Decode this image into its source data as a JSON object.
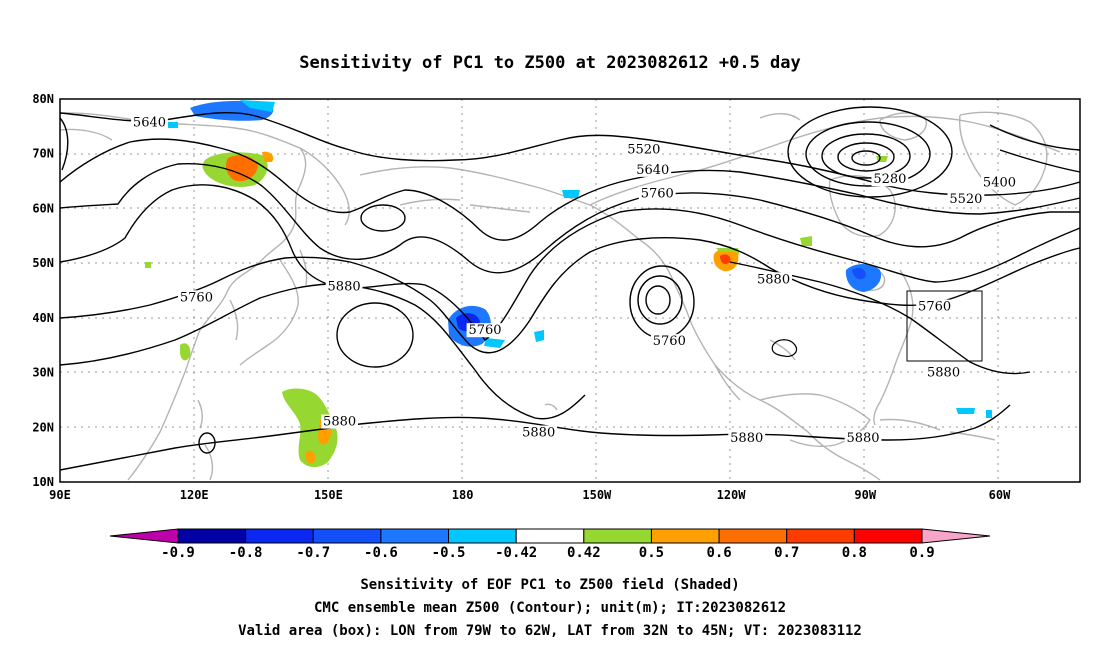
{
  "title": "Sensitivity of PC1 to Z500 at 2023082612 +0.5 day",
  "map": {
    "lat_labels": [
      "80N",
      "70N",
      "60N",
      "50N",
      "40N",
      "30N",
      "20N",
      "10N"
    ],
    "lon_labels": [
      "90E",
      "120E",
      "150E",
      "180",
      "150W",
      "120W",
      "90W",
      "60W"
    ],
    "lat_range": [
      10,
      80
    ],
    "lon_range": [
      90,
      318
    ],
    "valid_box": {
      "lon": [
        -79,
        -62
      ],
      "lat": [
        32,
        45
      ]
    },
    "contour_labels": [
      {
        "text": "5640",
        "lon": 110,
        "lat": 75.2
      },
      {
        "text": "5520",
        "lon": 220.5,
        "lat": 70.2
      },
      {
        "text": "5640",
        "lon": 222.5,
        "lat": 66.5
      },
      {
        "text": "5760",
        "lon": 223.5,
        "lat": 62.2
      },
      {
        "text": "5280",
        "lon": 275.5,
        "lat": 64.8
      },
      {
        "text": "5400",
        "lon": 300,
        "lat": 64.2
      },
      {
        "text": "5520",
        "lon": 292.5,
        "lat": 61.2
      },
      {
        "text": "5760",
        "lon": 120.5,
        "lat": 43.2
      },
      {
        "text": "5880",
        "lon": 153.5,
        "lat": 45.2
      },
      {
        "text": "5760",
        "lon": 185,
        "lat": 37.2
      },
      {
        "text": "5760",
        "lon": 226.2,
        "lat": 35.2
      },
      {
        "text": "5880",
        "lon": 249.5,
        "lat": 46.5
      },
      {
        "text": "5760",
        "lon": 285.5,
        "lat": 41.5
      },
      {
        "text": "5880",
        "lon": 287.5,
        "lat": 29.5
      },
      {
        "text": "5880",
        "lon": 152.5,
        "lat": 20.5
      },
      {
        "text": "5880",
        "lon": 197,
        "lat": 18.5
      },
      {
        "text": "5880",
        "lon": 243.5,
        "lat": 17.5
      },
      {
        "text": "5880",
        "lon": 269.5,
        "lat": 17.5
      }
    ]
  },
  "colorbar": {
    "labels": [
      "-0.9",
      "-0.8",
      "-0.7",
      "-0.6",
      "-0.5",
      "-0.42",
      "0.42",
      "0.5",
      "0.6",
      "0.7",
      "0.8",
      "0.9"
    ],
    "colors": [
      "#be00aa",
      "#0000a5",
      "#0a28f0",
      "#1450fa",
      "#1e78ff",
      "#00c8ff",
      "#ffffff",
      "#96d732",
      "#ffa000",
      "#ff6e00",
      "#ff3c00",
      "#ff0000",
      "#f7a6c8"
    ]
  },
  "caption": {
    "line1": "Sensitivity of EOF PC1 to Z500 field (Shaded)",
    "line2": "CMC ensemble mean Z500 (Contour); unit(m); IT:2023082612",
    "line3": "Valid area (box): LON from 79W to 62W, LAT from 32N to 45N; VT: 2023083112"
  }
}
